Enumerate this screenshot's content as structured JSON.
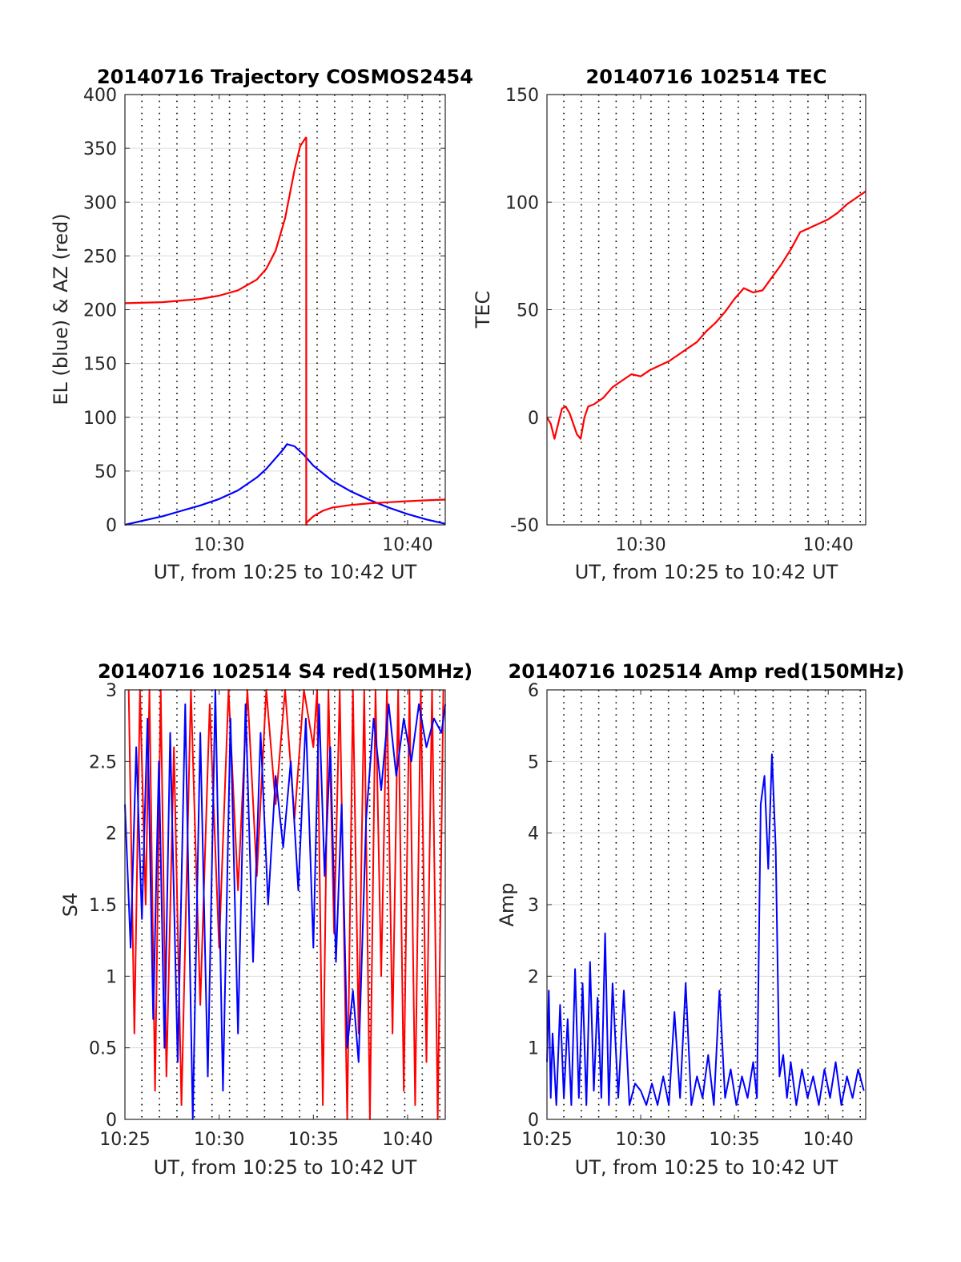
{
  "chart_data": [
    {
      "type": "line",
      "title": "20140716 Trajectory COSMOS2454",
      "xlabel": "UT, from 10:25 to 10:42 UT",
      "ylabel": "EL (blue) & AZ (red)",
      "xlim": [
        25,
        42
      ],
      "ylim": [
        0,
        400
      ],
      "x_ticks": [
        30,
        40
      ],
      "x_tick_labels": [
        "10:30",
        "10:40"
      ],
      "y_ticks": [
        0,
        50,
        100,
        150,
        200,
        250,
        300,
        350,
        400
      ],
      "y_tick_labels": [
        "0",
        "50",
        "100",
        "150",
        "200",
        "250",
        "300",
        "350",
        "400"
      ],
      "grid": true,
      "series": [
        {
          "kind": "el",
          "color": "#0000ff",
          "x": [
            25,
            26,
            27,
            28,
            29,
            30,
            31,
            32,
            32.5,
            33,
            33.4,
            33.6,
            34,
            34.5,
            35,
            36,
            37,
            38,
            39,
            40,
            41,
            42
          ],
          "y": [
            0,
            4,
            8,
            13,
            18,
            24,
            32,
            44,
            52,
            62,
            70,
            75,
            73,
            65,
            55,
            41,
            31,
            23,
            16,
            10,
            5,
            1
          ]
        },
        {
          "kind": "az",
          "color": "#ff0000",
          "x": [
            25,
            27,
            29,
            30,
            31,
            32,
            32.5,
            33,
            33.5,
            34,
            34.3,
            34.6,
            34.62,
            34.64,
            35,
            35.5,
            36,
            37,
            38,
            39,
            40,
            41,
            42
          ],
          "y": [
            206,
            207,
            210,
            213,
            218,
            228,
            238,
            255,
            285,
            330,
            352,
            360,
            0,
            2,
            8,
            13,
            16,
            18.5,
            20,
            21,
            22,
            22.8,
            23.5
          ]
        }
      ]
    },
    {
      "type": "line",
      "title": "20140716 102514 TEC",
      "xlabel": "UT, from 10:25 to 10:42 UT",
      "ylabel": "TEC",
      "xlim": [
        25,
        42
      ],
      "ylim": [
        -50,
        150
      ],
      "x_ticks": [
        30,
        40
      ],
      "x_tick_labels": [
        "10:30",
        "10:40"
      ],
      "y_ticks": [
        -50,
        0,
        50,
        100,
        150
      ],
      "y_tick_labels": [
        "-50",
        "0",
        "50",
        "100",
        "150"
      ],
      "grid": true,
      "series": [
        {
          "color": "#ff0000",
          "x": [
            25,
            25.2,
            25.4,
            25.6,
            25.8,
            26,
            26.2,
            26.4,
            26.6,
            26.8,
            27,
            27.2,
            27.5,
            28,
            28.5,
            29,
            29.5,
            30,
            30.5,
            31,
            31.5,
            32,
            32.5,
            33,
            33.5,
            34,
            34.5,
            35,
            35.5,
            36,
            36.5,
            37,
            37.5,
            38,
            38.5,
            39,
            39.5,
            40,
            40.5,
            41,
            41.5,
            42
          ],
          "y": [
            0,
            -3,
            -10,
            -3,
            4,
            5,
            2,
            -3,
            -8,
            -10,
            0,
            5,
            6,
            9,
            14,
            17,
            20,
            19,
            22,
            24,
            26,
            29,
            32,
            35,
            40,
            44,
            49,
            55,
            60,
            58,
            59,
            65,
            71,
            78,
            86,
            88,
            90,
            92,
            95,
            99,
            102,
            105
          ]
        }
      ]
    },
    {
      "type": "line",
      "title": "20140716 102514 S4 red(150MHz)",
      "xlabel": "UT, from 10:25 to 10:42 UT",
      "ylabel": "S4",
      "xlim": [
        25,
        42
      ],
      "ylim": [
        0,
        3
      ],
      "x_ticks": [
        25,
        30,
        35,
        40
      ],
      "x_tick_labels": [
        "10:25",
        "10:30",
        "10:35",
        "10:40"
      ],
      "y_ticks": [
        0,
        0.5,
        1,
        1.5,
        2,
        2.5,
        3
      ],
      "y_tick_labels": [
        "0",
        "0.5",
        "1",
        "1.5",
        "2",
        "2.5",
        "3"
      ],
      "grid": true,
      "series": [
        {
          "color": "#ff0000",
          "x": [
            25.2,
            25.5,
            25.8,
            26.1,
            26.3,
            26.6,
            26.9,
            27.2,
            27.6,
            28,
            28.5,
            29,
            29.5,
            30,
            30.5,
            31,
            31.5,
            32,
            32.5,
            33,
            33.5,
            34,
            34.5,
            35,
            35.2,
            35.5,
            35.8,
            36.1,
            36.4,
            36.8,
            37.1,
            37.4,
            37.7,
            38,
            38.3,
            38.6,
            38.9,
            39.2,
            39.5,
            39.8,
            40.1,
            40.4,
            40.7,
            41,
            41.3,
            41.6,
            41.9
          ],
          "y": [
            3,
            0.6,
            3,
            1.5,
            3,
            0.2,
            3,
            0.3,
            2.6,
            0.1,
            3,
            0.8,
            2.9,
            1.2,
            3,
            1.6,
            3,
            1.7,
            3,
            2.2,
            3,
            2.1,
            3,
            2.6,
            3,
            0.1,
            3,
            1.3,
            3,
            0,
            3,
            0.6,
            3,
            0,
            3,
            1,
            3,
            0.6,
            3,
            0.2,
            3,
            0.1,
            3,
            0.4,
            3,
            0,
            3
          ]
        },
        {
          "color": "#0000ff",
          "x": [
            25,
            25.3,
            25.6,
            25.9,
            26.2,
            26.5,
            26.8,
            27.1,
            27.4,
            27.8,
            28.2,
            28.6,
            29,
            29.4,
            29.8,
            30.2,
            30.6,
            31,
            31.4,
            31.8,
            32.2,
            32.6,
            33,
            33.4,
            33.8,
            34.2,
            34.6,
            35,
            35.3,
            35.6,
            35.9,
            36.2,
            36.5,
            36.8,
            37.1,
            37.4,
            37.8,
            38.2,
            38.6,
            39,
            39.4,
            39.8,
            40.2,
            40.6,
            41,
            41.4,
            41.8,
            42
          ],
          "y": [
            2.2,
            1.2,
            2.6,
            1.4,
            2.8,
            0.7,
            2.5,
            0.5,
            2.7,
            0.4,
            2.9,
            0,
            2.7,
            0.3,
            3,
            0.2,
            2.8,
            0.6,
            2.9,
            1.1,
            2.7,
            1.5,
            2.4,
            1.9,
            2.5,
            1.6,
            2.8,
            1.2,
            2.9,
            1.7,
            2.6,
            1.1,
            2.2,
            0.5,
            0.9,
            0.4,
            2.1,
            2.8,
            2.3,
            2.9,
            2.4,
            2.8,
            2.5,
            2.9,
            2.6,
            2.8,
            2.7,
            2.9
          ]
        }
      ]
    },
    {
      "type": "line",
      "title": "20140716 102514 Amp red(150MHz)",
      "xlabel": "UT, from 10:25 to 10:42 UT",
      "ylabel": "Amp",
      "xlim": [
        25,
        42
      ],
      "ylim": [
        0,
        6
      ],
      "x_ticks": [
        25,
        30,
        35,
        40
      ],
      "x_tick_labels": [
        "10:25",
        "10:30",
        "10:35",
        "10:40"
      ],
      "y_ticks": [
        0,
        1,
        2,
        3,
        4,
        5,
        6
      ],
      "y_tick_labels": [
        "0",
        "1",
        "2",
        "3",
        "4",
        "5",
        "6"
      ],
      "grid": true,
      "series": [
        {
          "color": "#0000ff",
          "x": [
            25,
            25.1,
            25.2,
            25.3,
            25.5,
            25.7,
            25.9,
            26.1,
            26.3,
            26.5,
            26.7,
            26.9,
            27.1,
            27.3,
            27.5,
            27.7,
            27.9,
            28.1,
            28.3,
            28.5,
            28.8,
            29.1,
            29.4,
            29.7,
            30,
            30.3,
            30.6,
            30.9,
            31.2,
            31.5,
            31.8,
            32.1,
            32.4,
            32.7,
            33,
            33.3,
            33.6,
            33.9,
            34.2,
            34.5,
            34.8,
            35.1,
            35.4,
            35.7,
            36,
            36.2,
            36.4,
            36.6,
            36.8,
            37,
            37.2,
            37.4,
            37.6,
            37.8,
            38,
            38.3,
            38.6,
            38.9,
            39.2,
            39.5,
            39.8,
            40.1,
            40.4,
            40.7,
            41,
            41.3,
            41.6,
            41.9
          ],
          "y": [
            0.8,
            1.8,
            0.3,
            1.2,
            0.2,
            1.6,
            0.3,
            1.4,
            0.2,
            2.1,
            0.3,
            1.9,
            0.2,
            2.2,
            0.4,
            1.7,
            0.3,
            2.6,
            0.2,
            1.9,
            0.3,
            1.8,
            0.2,
            0.5,
            0.4,
            0.2,
            0.5,
            0.2,
            0.6,
            0.2,
            1.5,
            0.3,
            1.9,
            0.2,
            0.6,
            0.3,
            0.9,
            0.2,
            1.8,
            0.3,
            0.7,
            0.2,
            0.6,
            0.3,
            0.8,
            0.3,
            4.4,
            4.8,
            3.5,
            5.1,
            3.8,
            0.6,
            0.9,
            0.3,
            0.8,
            0.2,
            0.7,
            0.3,
            0.6,
            0.2,
            0.7,
            0.3,
            0.8,
            0.2,
            0.6,
            0.3,
            0.7,
            0.4
          ]
        }
      ]
    }
  ]
}
